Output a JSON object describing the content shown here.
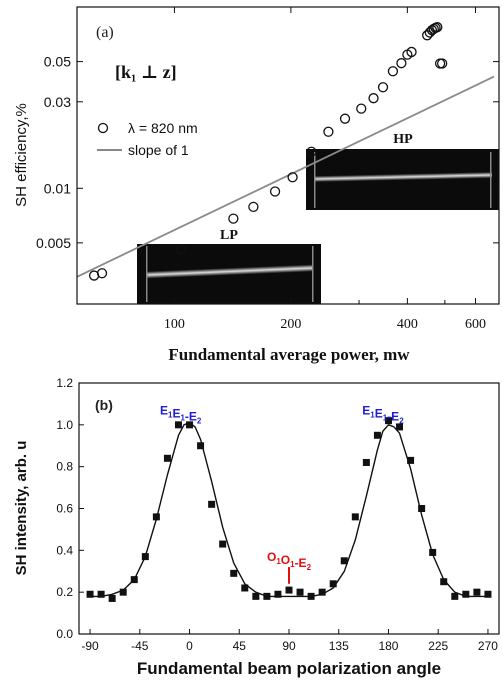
{
  "chart_data": [
    {
      "panel_label": "(a)",
      "type": "scatter",
      "x_scale": "log",
      "y_scale": "log",
      "xlabel": "Fundamental average power, mw",
      "ylabel": "SH efficiency,%",
      "x_ticks": [
        100,
        200,
        400,
        600
      ],
      "x_ticks_unlabeled": [
        300,
        500
      ],
      "y_ticks": [
        0.005,
        0.01,
        0.03,
        0.05
      ],
      "y_tick_labels": [
        "0.005",
        "0.01",
        "0.03",
        "0.05"
      ],
      "xlim": [
        56,
        690
      ],
      "ylim": [
        0.0023,
        0.1
      ],
      "orientation_label": "[k₁ ⊥ z]",
      "legend": [
        {
          "marker": "open-circle",
          "label": "λ = 820 nm"
        },
        {
          "marker": "gray-line",
          "label": "slope of 1"
        }
      ],
      "series": [
        {
          "label": "λ = 820 nm",
          "x": [
            62,
            65,
            104,
            142,
            160,
            182,
            202,
            226,
            250,
            276,
            304,
            327,
            346,
            367,
            386,
            400,
            410,
            450,
            457,
            463,
            468,
            473,
            478,
            486,
            492
          ],
          "y": [
            0.0033,
            0.0034,
            0.0046,
            0.0068,
            0.0079,
            0.0096,
            0.0115,
            0.0159,
            0.0205,
            0.0242,
            0.0275,
            0.0314,
            0.0361,
            0.0442,
            0.049,
            0.0546,
            0.0565,
            0.0698,
            0.0723,
            0.0745,
            0.0757,
            0.0767,
            0.0774,
            0.0488,
            0.0488
          ]
        },
        {
          "label": "slope of 1",
          "x": [
            56,
            670
          ],
          "y": [
            0.00325,
            0.0413
          ]
        }
      ],
      "insets": [
        {
          "label": "HP",
          "position": "upper-right"
        },
        {
          "label": "LP",
          "position": "lower-middle"
        }
      ]
    },
    {
      "panel_label": "(b)",
      "type": "scatter",
      "xlabel": "Fundamental beam polarization angle",
      "ylabel": "SH intensity, arb. u",
      "x_ticks": [
        -90,
        -45,
        0,
        45,
        90,
        135,
        180,
        225,
        270
      ],
      "y_ticks": [
        0.0,
        0.2,
        0.4,
        0.6,
        0.8,
        1.0,
        1.2
      ],
      "y_tick_labels": [
        "0.0",
        "0.2",
        "0.4",
        "0.6",
        "0.8",
        "1.0",
        "1.2"
      ],
      "xlim": [
        -100,
        280
      ],
      "ylim": [
        0,
        1.2
      ],
      "annotations": [
        {
          "parts": [
            [
              "E",
              "1"
            ],
            [
              "E",
              "1"
            ],
            [
              "-E",
              "2"
            ]
          ],
          "x": -8,
          "y": 1.05,
          "color": "#1f1fd0"
        },
        {
          "parts": [
            [
              "E",
              "1"
            ],
            [
              "E",
              "1"
            ],
            [
              "-E",
              "2"
            ]
          ],
          "x": 175,
          "y": 1.05,
          "color": "#1f1fd0"
        },
        {
          "parts": [
            [
              "O",
              "1"
            ],
            [
              "O",
              "1"
            ],
            [
              "-E",
              "2"
            ]
          ],
          "x": 90,
          "y": 0.35,
          "color": "#e01010",
          "marker_x": 90,
          "marker_y": [
            0.24,
            0.32
          ]
        }
      ],
      "series": [
        {
          "label": "data",
          "x": [
            -90,
            -80,
            -70,
            -60,
            -50,
            -40,
            -30,
            -20,
            -10,
            0,
            10,
            20,
            30,
            40,
            50,
            60,
            70,
            80,
            90,
            100,
            110,
            120,
            130,
            140,
            150,
            160,
            170,
            180,
            190,
            200,
            210,
            220,
            230,
            240,
            250,
            260,
            270
          ],
          "y": [
            0.19,
            0.19,
            0.17,
            0.2,
            0.26,
            0.37,
            0.56,
            0.84,
            1.0,
            1.0,
            0.9,
            0.62,
            0.43,
            0.29,
            0.22,
            0.18,
            0.18,
            0.19,
            0.21,
            0.2,
            0.18,
            0.2,
            0.24,
            0.35,
            0.56,
            0.82,
            0.95,
            1.02,
            0.99,
            0.83,
            0.6,
            0.39,
            0.25,
            0.18,
            0.19,
            0.2,
            0.19
          ]
        },
        {
          "label": "fit",
          "type": "line",
          "x": [
            -90,
            -80,
            -70,
            -60,
            -50,
            -40,
            -30,
            -20,
            -10,
            -5,
            0,
            5,
            10,
            20,
            30,
            40,
            50,
            60,
            70,
            80,
            90,
            100,
            110,
            120,
            130,
            140,
            150,
            160,
            170,
            175,
            180,
            185,
            190,
            200,
            210,
            220,
            230,
            240,
            250,
            260,
            270
          ],
          "y": [
            0.18,
            0.18,
            0.19,
            0.21,
            0.26,
            0.37,
            0.55,
            0.76,
            0.95,
            1.0,
            1.01,
            0.99,
            0.93,
            0.73,
            0.51,
            0.34,
            0.24,
            0.2,
            0.18,
            0.18,
            0.18,
            0.18,
            0.18,
            0.19,
            0.22,
            0.3,
            0.45,
            0.66,
            0.88,
            0.97,
            1.0,
            0.99,
            0.96,
            0.79,
            0.57,
            0.38,
            0.26,
            0.2,
            0.18,
            0.18,
            0.18
          ]
        }
      ]
    }
  ]
}
